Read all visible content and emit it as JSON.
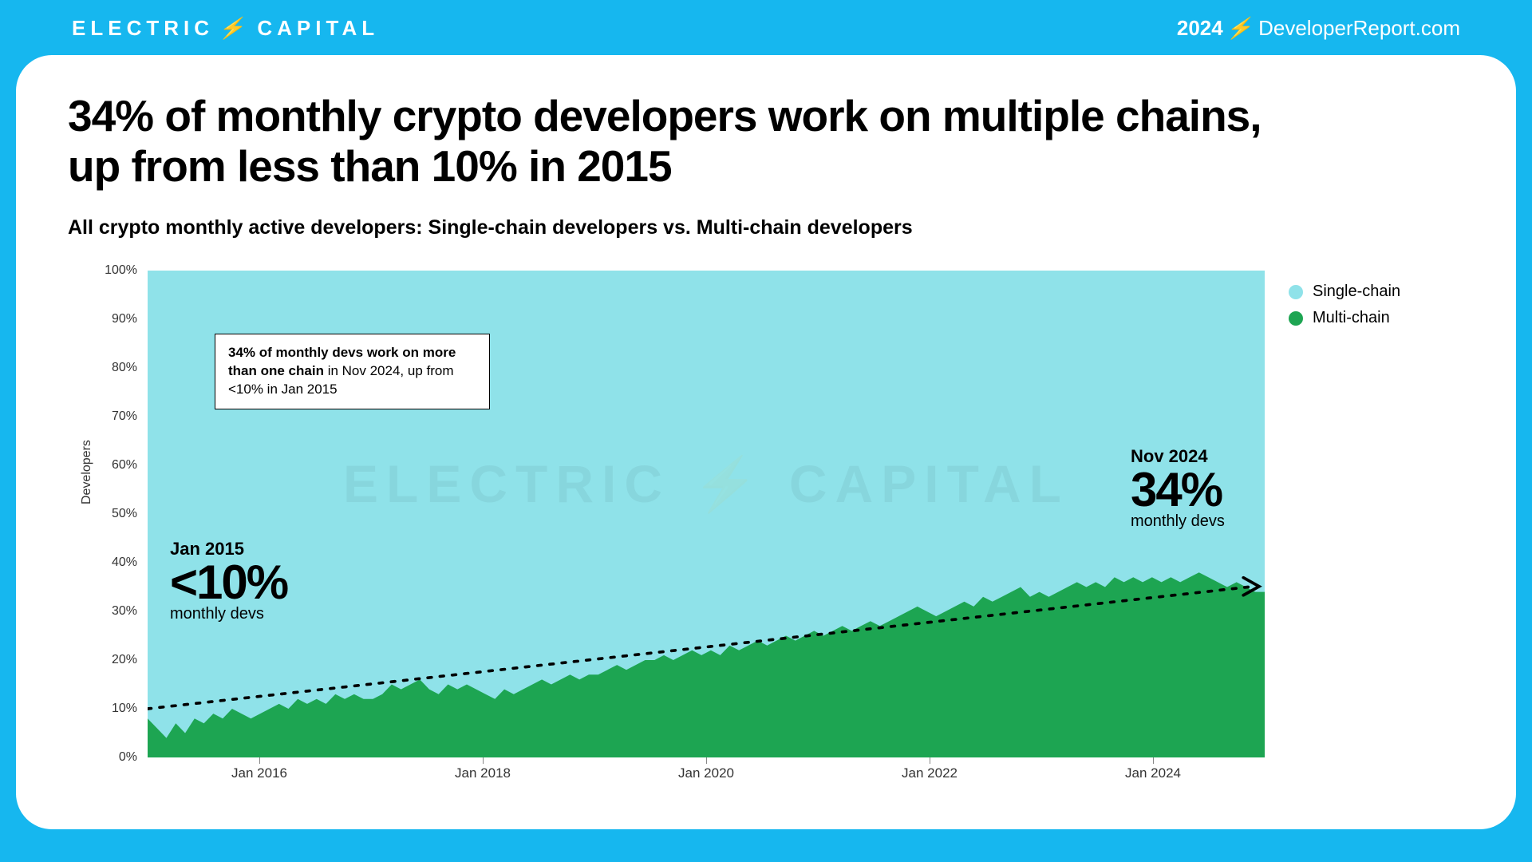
{
  "page": {
    "background": "#16b7ef",
    "card_background": "#ffffff"
  },
  "brand": {
    "left": "ELECTRIC ⚡ CAPITAL",
    "left_text1": "ELECTRIC",
    "left_text2": "CAPITAL",
    "right_year": "2024",
    "right_site": "DeveloperReport.com"
  },
  "title": "34% of monthly crypto developers work on multiple chains, up from less than 10% in 2015",
  "subtitle": "All crypto monthly active developers: Single-chain developers vs. Multi-chain developers",
  "chart": {
    "type": "stacked-area-pct",
    "y_axis_title": "Developers",
    "ylim": [
      0,
      100
    ],
    "ytick_step": 10,
    "yticks": [
      0,
      10,
      20,
      30,
      40,
      50,
      60,
      70,
      80,
      90,
      100
    ],
    "ytick_labels": [
      "0%",
      "10%",
      "20%",
      "30%",
      "40%",
      "50%",
      "60%",
      "70%",
      "80%",
      "90%",
      "100%"
    ],
    "x_start": "2015-01",
    "x_end": "2024-12",
    "xticks": [
      "Jan 2016",
      "Jan 2018",
      "Jan 2020",
      "Jan 2022",
      "Jan 2024"
    ],
    "xtick_positions_pct": [
      10.0,
      30.0,
      50.0,
      70.0,
      90.0
    ],
    "colors": {
      "single_chain": "#8fe2e9",
      "multi_chain": "#1da552",
      "trend_line": "#000000",
      "grid": "#e0e0e0",
      "plot_bg": "#8fe2e9"
    },
    "multi_chain_pct": [
      8,
      6,
      4,
      7,
      5,
      8,
      7,
      9,
      8,
      10,
      9,
      8,
      9,
      10,
      11,
      10,
      12,
      11,
      12,
      11,
      13,
      12,
      13,
      12,
      12,
      13,
      15,
      14,
      15,
      16,
      14,
      13,
      15,
      14,
      15,
      14,
      13,
      12,
      14,
      13,
      14,
      15,
      16,
      15,
      16,
      17,
      16,
      17,
      17,
      18,
      19,
      18,
      19,
      20,
      20,
      21,
      20,
      21,
      22,
      21,
      22,
      21,
      23,
      22,
      23,
      24,
      23,
      24,
      25,
      24,
      25,
      26,
      25,
      26,
      27,
      26,
      27,
      28,
      27,
      28,
      29,
      30,
      31,
      30,
      29,
      30,
      31,
      32,
      31,
      33,
      32,
      33,
      34,
      35,
      33,
      34,
      33,
      34,
      35,
      36,
      35,
      36,
      35,
      37,
      36,
      37,
      36,
      37,
      36,
      37,
      36,
      37,
      38,
      37,
      36,
      35,
      36,
      35,
      34,
      34
    ],
    "trend": {
      "start_pct": 10,
      "end_pct": 35
    }
  },
  "legend": [
    {
      "label": "Single-chain",
      "color": "#8fe2e9"
    },
    {
      "label": "Multi-chain",
      "color": "#1da552"
    }
  ],
  "callout_box": {
    "bold": "34% of monthly devs work on more than one chain",
    "rest": " in Nov 2024, up from <10% in Jan 2015",
    "left_pct": 6,
    "top_pct": 13
  },
  "callout_start": {
    "when": "Jan 2015",
    "big": "<10%",
    "sub": "monthly devs",
    "left_pct": 2,
    "top_pct": 55
  },
  "callout_end": {
    "when": "Nov 2024",
    "big": "34%",
    "sub": "monthly devs",
    "left_pct": 88,
    "top_pct": 36
  },
  "watermark": "ELECTRIC ⚡ CAPITAL"
}
